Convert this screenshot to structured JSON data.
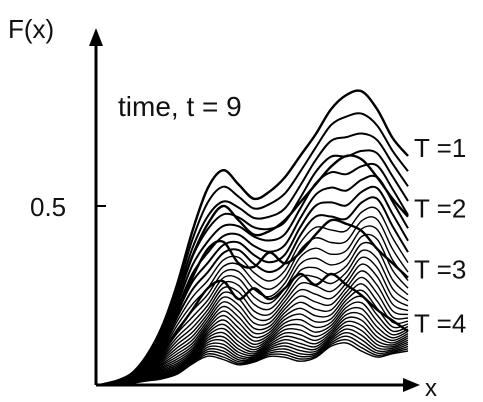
{
  "chart_data": {
    "type": "line",
    "ylabel": "F(x)",
    "xlabel": "x",
    "annotation": "time, t = 9",
    "y_ticks": [
      {
        "value": 0.5,
        "label": "0.5"
      }
    ],
    "ylim": [
      0,
      1
    ],
    "xlim": [
      0,
      1
    ],
    "grid": false,
    "legend": "none",
    "line_color": "#000000",
    "curve_count": 32,
    "x": [
      0,
      0.05,
      0.1,
      0.15,
      0.2,
      0.25,
      0.3,
      0.35,
      0.4,
      0.45,
      0.5,
      0.55,
      0.6,
      0.65,
      0.7,
      0.75,
      0.8,
      0.85,
      0.9,
      0.95,
      1.0
    ],
    "series": [
      {
        "name": "T =1",
        "values": [
          0.0,
          0.01,
          0.03,
          0.08,
          0.16,
          0.28,
          0.43,
          0.55,
          0.6,
          0.56,
          0.52,
          0.54,
          0.58,
          0.64,
          0.7,
          0.77,
          0.81,
          0.82,
          0.77,
          0.69,
          0.64
        ]
      },
      {
        "name": "T =2",
        "values": [
          0.0,
          0.01,
          0.03,
          0.07,
          0.14,
          0.24,
          0.36,
          0.45,
          0.5,
          0.46,
          0.42,
          0.43,
          0.46,
          0.51,
          0.56,
          0.61,
          0.64,
          0.63,
          0.58,
          0.52,
          0.47
        ]
      },
      {
        "name": "T =3",
        "values": [
          0.0,
          0.01,
          0.02,
          0.06,
          0.12,
          0.2,
          0.3,
          0.38,
          0.4,
          0.34,
          0.33,
          0.37,
          0.34,
          0.37,
          0.42,
          0.46,
          0.45,
          0.43,
          0.38,
          0.34,
          0.3
        ]
      },
      {
        "name": "T =4",
        "values": [
          0.0,
          0.01,
          0.02,
          0.05,
          0.09,
          0.15,
          0.21,
          0.27,
          0.29,
          0.24,
          0.27,
          0.24,
          0.27,
          0.31,
          0.28,
          0.31,
          0.28,
          0.25,
          0.21,
          0.18,
          0.15
        ]
      }
    ]
  }
}
